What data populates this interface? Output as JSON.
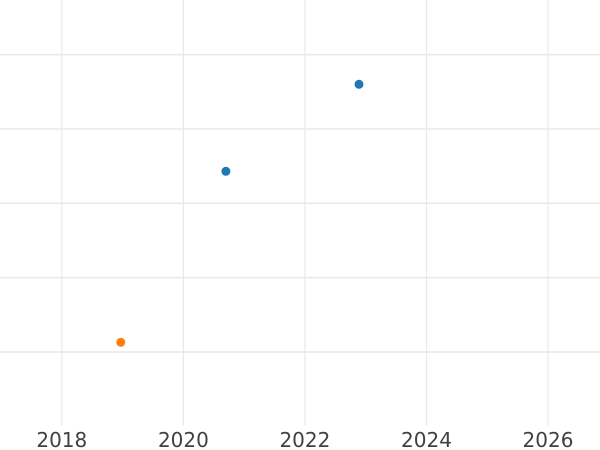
{
  "chart": {
    "background_color": "#ffffff",
    "grid_color": "#e9e9e9",
    "tick_label_color": "#414141"
  },
  "chart_data": {
    "type": "scatter",
    "title": "",
    "xlabel": "",
    "ylabel": "",
    "grid": true,
    "legend": false,
    "x_axis": {
      "tick_labels": [
        "2018",
        "2020",
        "2022",
        "2024",
        "2026"
      ],
      "tick_values": [
        2018,
        2020,
        2022,
        2024,
        2026
      ],
      "visible_range": [
        2017.0,
        2026.85
      ]
    },
    "y_axis": {
      "tick_labels_visible": false,
      "gridline_values": [
        1,
        2,
        3,
        4,
        5
      ],
      "visible_range": [
        0.33,
        5.73
      ],
      "unit": "unlabeled-gridline-units"
    },
    "series": [
      {
        "name": "blue-series",
        "color": "#1f77b4",
        "marker": "circle",
        "points": [
          {
            "x": 2020.7,
            "y": 3.43
          },
          {
            "x": 2022.89,
            "y": 4.6
          }
        ]
      },
      {
        "name": "orange-series",
        "color": "#ff7f0e",
        "marker": "circle",
        "points": [
          {
            "x": 2018.97,
            "y": 1.13
          }
        ]
      }
    ]
  }
}
